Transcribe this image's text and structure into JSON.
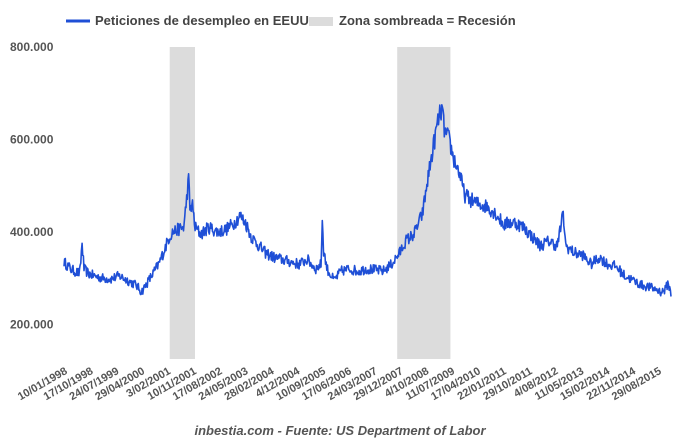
{
  "caption": "inbestia.com - Fuente: US Department of Labor",
  "chart_data": {
    "type": "line",
    "title": "",
    "xlabel": "",
    "ylabel": "",
    "ylim": [
      125000,
      800000
    ],
    "yticks": [
      200000,
      400000,
      600000,
      800000
    ],
    "ytick_labels": [
      "200.000",
      "400.000",
      "600.000",
      "800.000"
    ],
    "xlim": [
      "1998-01-10",
      "2016-01-16"
    ],
    "x_tick_labels": [
      "10/01/1998",
      "17/10/1998",
      "24/07/1999",
      "29/04/2000",
      "3/02/2001",
      "10/11/2001",
      "17/08/2002",
      "24/05/2003",
      "28/02/2004",
      "4/12/2004",
      "10/09/2005",
      "17/06/2006",
      "24/03/2007",
      "29/12/2007",
      "4/10/2008",
      "11/07/2009",
      "17/04/2010",
      "22/01/2011",
      "29/10/2011",
      "4/08/2012",
      "11/05/2013",
      "15/02/2014",
      "22/11/2014",
      "29/08/2015"
    ],
    "x_tick_dates": [
      "1998-01-10",
      "1998-10-17",
      "1999-07-24",
      "2000-04-29",
      "2001-02-03",
      "2001-11-10",
      "2002-08-17",
      "2003-05-24",
      "2004-02-28",
      "2004-12-04",
      "2005-09-10",
      "2006-06-17",
      "2007-03-24",
      "2007-12-29",
      "2008-10-04",
      "2009-07-11",
      "2010-04-17",
      "2011-01-22",
      "2011-10-29",
      "2012-08-04",
      "2013-05-11",
      "2014-02-15",
      "2014-11-22",
      "2015-08-29"
    ],
    "grid": false,
    "legend_placement": "top-left",
    "colors": {
      "series": "#1f4fd6",
      "recession": "#dcdcdc"
    },
    "recessions": [
      {
        "start": "2001-03-01",
        "end": "2001-11-30"
      },
      {
        "start": "2007-12-01",
        "end": "2009-06-30"
      }
    ],
    "series": [
      {
        "name": "Peticiones de desempleo en EEUU",
        "x": [
          "1998-01-10",
          "1998-04-01",
          "1998-07-01",
          "1998-07-25",
          "1998-08-15",
          "1998-10-01",
          "1998-12-01",
          "1999-03-01",
          "1999-06-01",
          "1999-09-01",
          "1999-12-01",
          "2000-03-01",
          "2000-04-29",
          "2000-07-01",
          "2000-09-01",
          "2000-11-01",
          "2001-01-01",
          "2001-02-15",
          "2001-04-01",
          "2001-06-01",
          "2001-08-01",
          "2001-09-22",
          "2001-10-06",
          "2001-11-01",
          "2001-12-01",
          "2002-02-01",
          "2002-05-01",
          "2002-08-01",
          "2002-11-01",
          "2003-02-01",
          "2003-04-01",
          "2003-06-01",
          "2003-08-01",
          "2003-10-01",
          "2004-01-01",
          "2004-04-01",
          "2004-07-01",
          "2004-10-01",
          "2005-01-01",
          "2005-04-01",
          "2005-07-01",
          "2005-08-27",
          "2005-09-10",
          "2005-09-24",
          "2005-11-01",
          "2006-01-15",
          "2006-04-01",
          "2006-07-01",
          "2006-10-01",
          "2007-01-01",
          "2007-04-01",
          "2007-07-01",
          "2007-10-01",
          "2007-12-29",
          "2008-03-01",
          "2008-06-01",
          "2008-09-01",
          "2008-11-01",
          "2009-01-01",
          "2009-02-15",
          "2009-03-28",
          "2009-05-01",
          "2009-06-15",
          "2009-08-01",
          "2009-10-01",
          "2009-12-01",
          "2010-02-01",
          "2010-05-01",
          "2010-08-01",
          "2010-11-01",
          "2011-02-01",
          "2011-04-01",
          "2011-06-01",
          "2011-09-01",
          "2011-12-01",
          "2012-03-01",
          "2012-06-01",
          "2012-09-01",
          "2012-11-03",
          "2012-12-01",
          "2013-03-01",
          "2013-06-01",
          "2013-09-01",
          "2013-12-01",
          "2014-03-01",
          "2014-06-01",
          "2014-09-01",
          "2014-12-01",
          "2015-03-01",
          "2015-06-01",
          "2015-08-15",
          "2015-10-01",
          "2015-11-15",
          "2015-12-15",
          "2016-01-16"
        ],
        "values": [
          335000,
          318000,
          310000,
          375000,
          320000,
          310000,
          305000,
          300000,
          298000,
          305000,
          295000,
          285000,
          270000,
          290000,
          310000,
          330000,
          360000,
          385000,
          400000,
          405000,
          410000,
          515000,
          450000,
          460000,
          410000,
          395000,
          410000,
          400000,
          405000,
          420000,
          435000,
          420000,
          390000,
          375000,
          355000,
          345000,
          340000,
          335000,
          330000,
          340000,
          320000,
          330000,
          430000,
          360000,
          320000,
          295000,
          315000,
          320000,
          315000,
          320000,
          318000,
          315000,
          330000,
          355000,
          380000,
          395000,
          440000,
          520000,
          590000,
          640000,
          665000,
          615000,
          600000,
          560000,
          530000,
          480000,
          470000,
          460000,
          455000,
          440000,
          415000,
          420000,
          420000,
          410000,
          390000,
          370000,
          380000,
          370000,
          440000,
          370000,
          355000,
          350000,
          330000,
          345000,
          330000,
          325000,
          305000,
          295000,
          285000,
          280000,
          275000,
          270000,
          275000,
          290000,
          265000
        ]
      }
    ]
  },
  "legend": {
    "series_label": "Peticiones de desempleo en EEUU",
    "recession_label": "Zona sombreada = Recesión"
  }
}
